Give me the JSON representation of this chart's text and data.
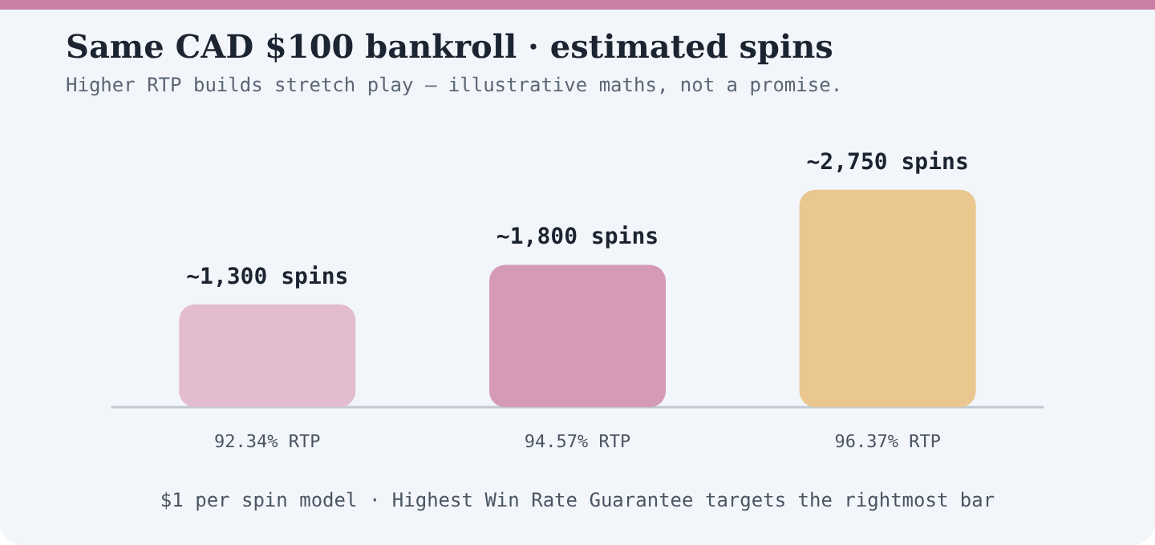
{
  "chart_data": {
    "type": "bar",
    "title": "Same CAD $100 bankroll · estimated spins",
    "subtitle": "Higher RTP builds stretch play — illustrative maths, not a promise.",
    "categories": [
      "92.34% RTP",
      "94.57% RTP",
      "96.37% RTP"
    ],
    "values": [
      1300,
      1800,
      2750
    ],
    "colors": [
      "#e3bcd0",
      "#d49ab7",
      "#e9c78f"
    ],
    "value_labels": [
      "~1,300 spins",
      "~1,800 spins",
      "~2,750 spins"
    ],
    "annotations": [
      "$1 per spin model · Highest Win Rate Guarantee targets the rightmost bar"
    ],
    "grid": false
  }
}
